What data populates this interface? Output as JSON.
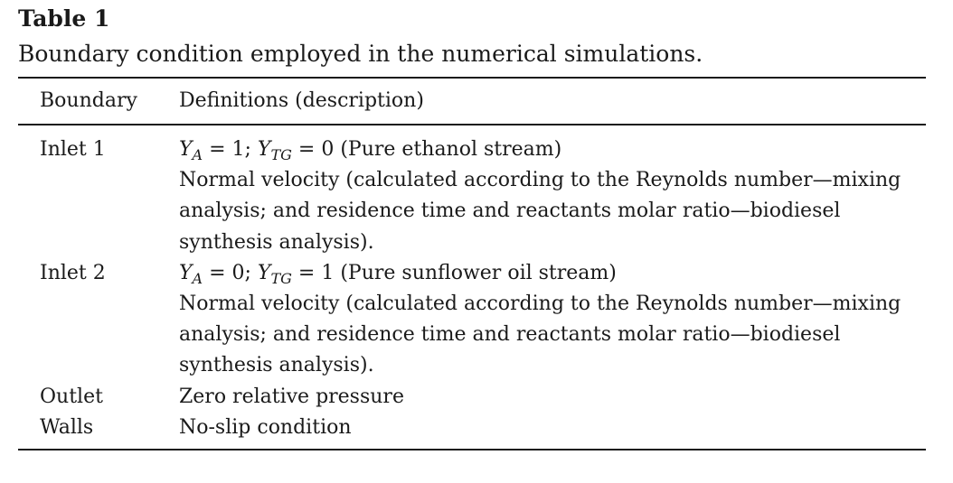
{
  "table": {
    "label": "Table 1",
    "caption": "Boundary condition employed in the numerical simulations.",
    "headers": [
      "Boundary",
      "Definitions (description)"
    ],
    "rows": [
      {
        "boundary": "Inlet 1",
        "formula": {
          "var1": "Y",
          "sub1": "A",
          "op1": " = 1; ",
          "var2": "Y",
          "sub2": "TG",
          "op2": " = 0 ",
          "desc": "(Pure ethanol stream)"
        },
        "lines": [
          "Normal velocity (calculated according to the Reynolds number—mixing",
          "analysis; and residence time and reactants molar ratio—biodiesel",
          "synthesis analysis)."
        ]
      },
      {
        "boundary": "Inlet 2",
        "formula": {
          "var1": "Y",
          "sub1": "A",
          "op1": " = 0; ",
          "var2": "Y",
          "sub2": "TG",
          "op2": " = 1 ",
          "desc": "(Pure sunflower oil stream)"
        },
        "lines": [
          "Normal velocity (calculated according to the Reynolds number—mixing",
          "analysis; and residence time and reactants molar ratio—biodiesel",
          "synthesis analysis)."
        ]
      },
      {
        "boundary": "Outlet",
        "lines": [
          "Zero relative pressure"
        ]
      },
      {
        "boundary": "Walls",
        "lines": [
          "No-slip condition"
        ]
      }
    ]
  }
}
